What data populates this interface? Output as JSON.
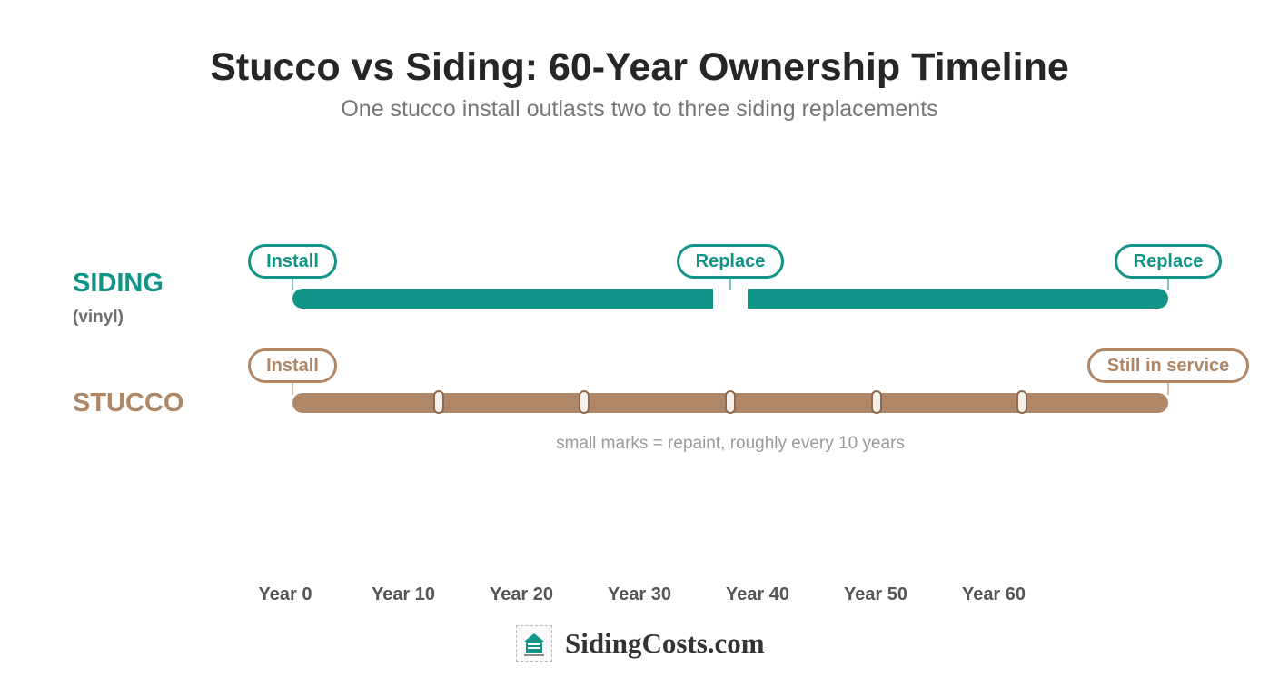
{
  "header": {
    "title": "Stucco vs Siding: 60-Year Ownership Timeline",
    "subtitle": "One stucco install outlasts two to three siding replacements"
  },
  "rows": {
    "siding": {
      "label": "SIDING",
      "sublabel": "(vinyl)",
      "events": [
        "Install",
        "Replace",
        "Replace"
      ]
    },
    "stucco": {
      "label": "STUCCO",
      "events": [
        "Install",
        "Still in service"
      ]
    }
  },
  "note": "small marks = repaint, roughly every 10 years",
  "axis": {
    "ticks": [
      "Year 0",
      "Year 10",
      "Year 20",
      "Year 30",
      "Year 40",
      "Year 50",
      "Year 60"
    ]
  },
  "brand": {
    "name": "SidingCosts.com",
    "logo_icon": "house-logo-icon"
  },
  "colors": {
    "siding": "#0f9487",
    "stucco": "#b08766"
  }
}
